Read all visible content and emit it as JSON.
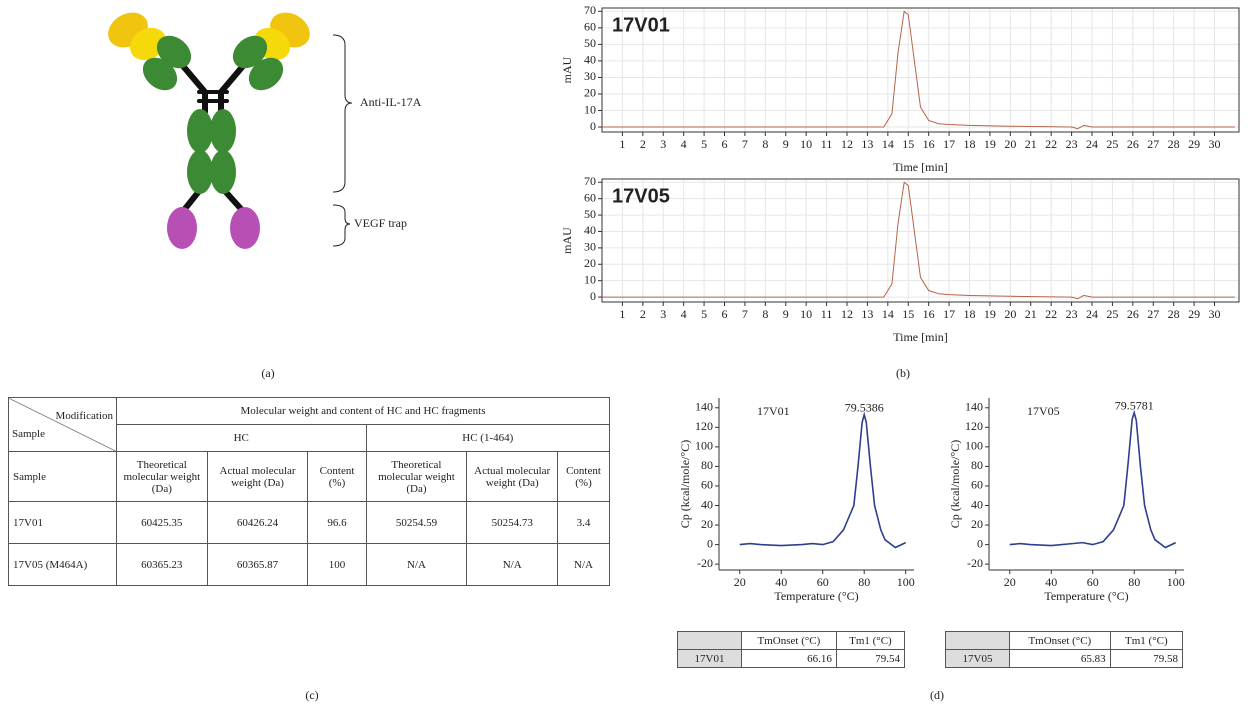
{
  "diagram": {
    "labels": [
      "Anti-IL-17A",
      "VEGF trap"
    ]
  },
  "panel_labels": [
    "(a)",
    "(b)",
    "(c)",
    "(d)"
  ],
  "chart_data": [
    {
      "type": "line",
      "title": "17V01",
      "xlabel": "Time [min]",
      "ylabel": "mAU",
      "x": [
        0,
        13.8,
        14.2,
        14.5,
        14.8,
        15.0,
        15.3,
        15.6,
        16,
        16.5,
        17,
        18,
        20,
        23,
        23.3,
        23.6,
        24,
        31
      ],
      "series": [
        {
          "color": "#b5654a",
          "values": [
            0,
            0,
            8,
            45,
            70,
            68,
            40,
            12,
            4,
            2,
            1.5,
            1,
            0.5,
            0,
            -1,
            1,
            0,
            0
          ]
        }
      ],
      "xlim": [
        0,
        31.2
      ],
      "ylim": [
        -3,
        72
      ],
      "xticks": [
        1,
        2,
        3,
        4,
        5,
        6,
        7,
        8,
        9,
        10,
        11,
        12,
        13,
        14,
        15,
        16,
        17,
        18,
        19,
        20,
        21,
        22,
        23,
        24,
        25,
        26,
        27,
        28,
        29,
        30
      ],
      "yticks": [
        0,
        10,
        20,
        30,
        40,
        50,
        60,
        70
      ],
      "grid": true
    },
    {
      "type": "line",
      "title": "17V05",
      "xlabel": "Time [min]",
      "ylabel": "mAU",
      "x": [
        0,
        13.8,
        14.2,
        14.5,
        14.8,
        15.0,
        15.3,
        15.6,
        16,
        16.5,
        17,
        18,
        20,
        23,
        23.3,
        23.6,
        24,
        31
      ],
      "series": [
        {
          "color": "#b5654a",
          "values": [
            0,
            0,
            8,
            45,
            70,
            68,
            40,
            12,
            4,
            2,
            1.5,
            1,
            0.5,
            0,
            -1,
            1,
            0,
            0
          ]
        }
      ],
      "xlim": [
        0,
        31.2
      ],
      "ylim": [
        -3,
        72
      ],
      "xticks": [
        1,
        2,
        3,
        4,
        5,
        6,
        7,
        8,
        9,
        10,
        11,
        12,
        13,
        14,
        15,
        16,
        17,
        18,
        19,
        20,
        21,
        22,
        23,
        24,
        25,
        26,
        27,
        28,
        29,
        30
      ],
      "yticks": [
        0,
        10,
        20,
        30,
        40,
        50,
        60,
        70
      ],
      "grid": true
    },
    {
      "type": "line",
      "title": "17V01",
      "annotation": "79.5386",
      "xlabel": "Temperature (°C)",
      "ylabel": "Cp (kcal/mole/°C)",
      "x": [
        20,
        25,
        30,
        40,
        50,
        55,
        60,
        65,
        70,
        72,
        75,
        77,
        79,
        80,
        81,
        83,
        85,
        88,
        90,
        95,
        100
      ],
      "series": [
        {
          "color": "#2e3f8f",
          "values": [
            0,
            1,
            0,
            -1,
            0,
            1,
            0,
            3,
            15,
            25,
            40,
            80,
            125,
            133,
            125,
            80,
            40,
            15,
            5,
            -3,
            2
          ]
        }
      ],
      "xlim": [
        10,
        104
      ],
      "ylim": [
        -26,
        150
      ],
      "xticks": [
        20,
        40,
        60,
        80,
        100
      ],
      "yticks": [
        -20,
        0,
        20,
        40,
        60,
        80,
        100,
        120,
        140
      ],
      "grid": false
    },
    {
      "type": "line",
      "title": "17V05",
      "annotation": "79.5781",
      "xlabel": "Temperature (°C)",
      "ylabel": "Cp (kcal/mole/°C)",
      "x": [
        20,
        25,
        30,
        40,
        50,
        55,
        60,
        65,
        70,
        72,
        75,
        77,
        79,
        80,
        81,
        83,
        85,
        88,
        90,
        95,
        100
      ],
      "series": [
        {
          "color": "#2e3f8f",
          "values": [
            0,
            1,
            0,
            -1,
            1,
            2,
            0,
            3,
            15,
            25,
            40,
            82,
            128,
            135,
            127,
            80,
            40,
            15,
            5,
            -3,
            2
          ]
        }
      ],
      "xlim": [
        10,
        104
      ],
      "ylim": [
        -26,
        150
      ],
      "xticks": [
        20,
        40,
        60,
        80,
        100
      ],
      "yticks": [
        -20,
        0,
        20,
        40,
        60,
        80,
        100,
        120,
        140
      ],
      "grid": false
    }
  ],
  "table": {
    "corner": {
      "top": "Modification",
      "bottom": "Sample"
    },
    "group_title": "Molecular weight and content of HC and HC fragments",
    "groups": [
      "HC",
      "HC (1-464)"
    ],
    "columns": [
      "Sample",
      "Theoretical molecular weight (Da)",
      "Actual molecular weight (Da)",
      "Content (%)",
      "Theoretical molecular weight (Da)",
      "Actual molecular weight (Da)",
      "Content (%)"
    ],
    "rows": [
      [
        "17V01",
        60425.35,
        60426.24,
        96.6,
        50254.59,
        50254.73,
        3.4
      ],
      [
        "17V05 (M464A)",
        60365.23,
        60365.87,
        100,
        "N/A",
        "N/A",
        "N/A"
      ]
    ]
  },
  "tm_tables": [
    {
      "columns": [
        "TmOnset (°C)",
        "Tm1 (°C)"
      ],
      "rows": [
        [
          "17V01",
          66.16,
          79.54
        ]
      ]
    },
    {
      "columns": [
        "TmOnset (°C)",
        "Tm1 (°C)"
      ],
      "rows": [
        [
          "17V05",
          65.83,
          79.58
        ]
      ]
    }
  ]
}
